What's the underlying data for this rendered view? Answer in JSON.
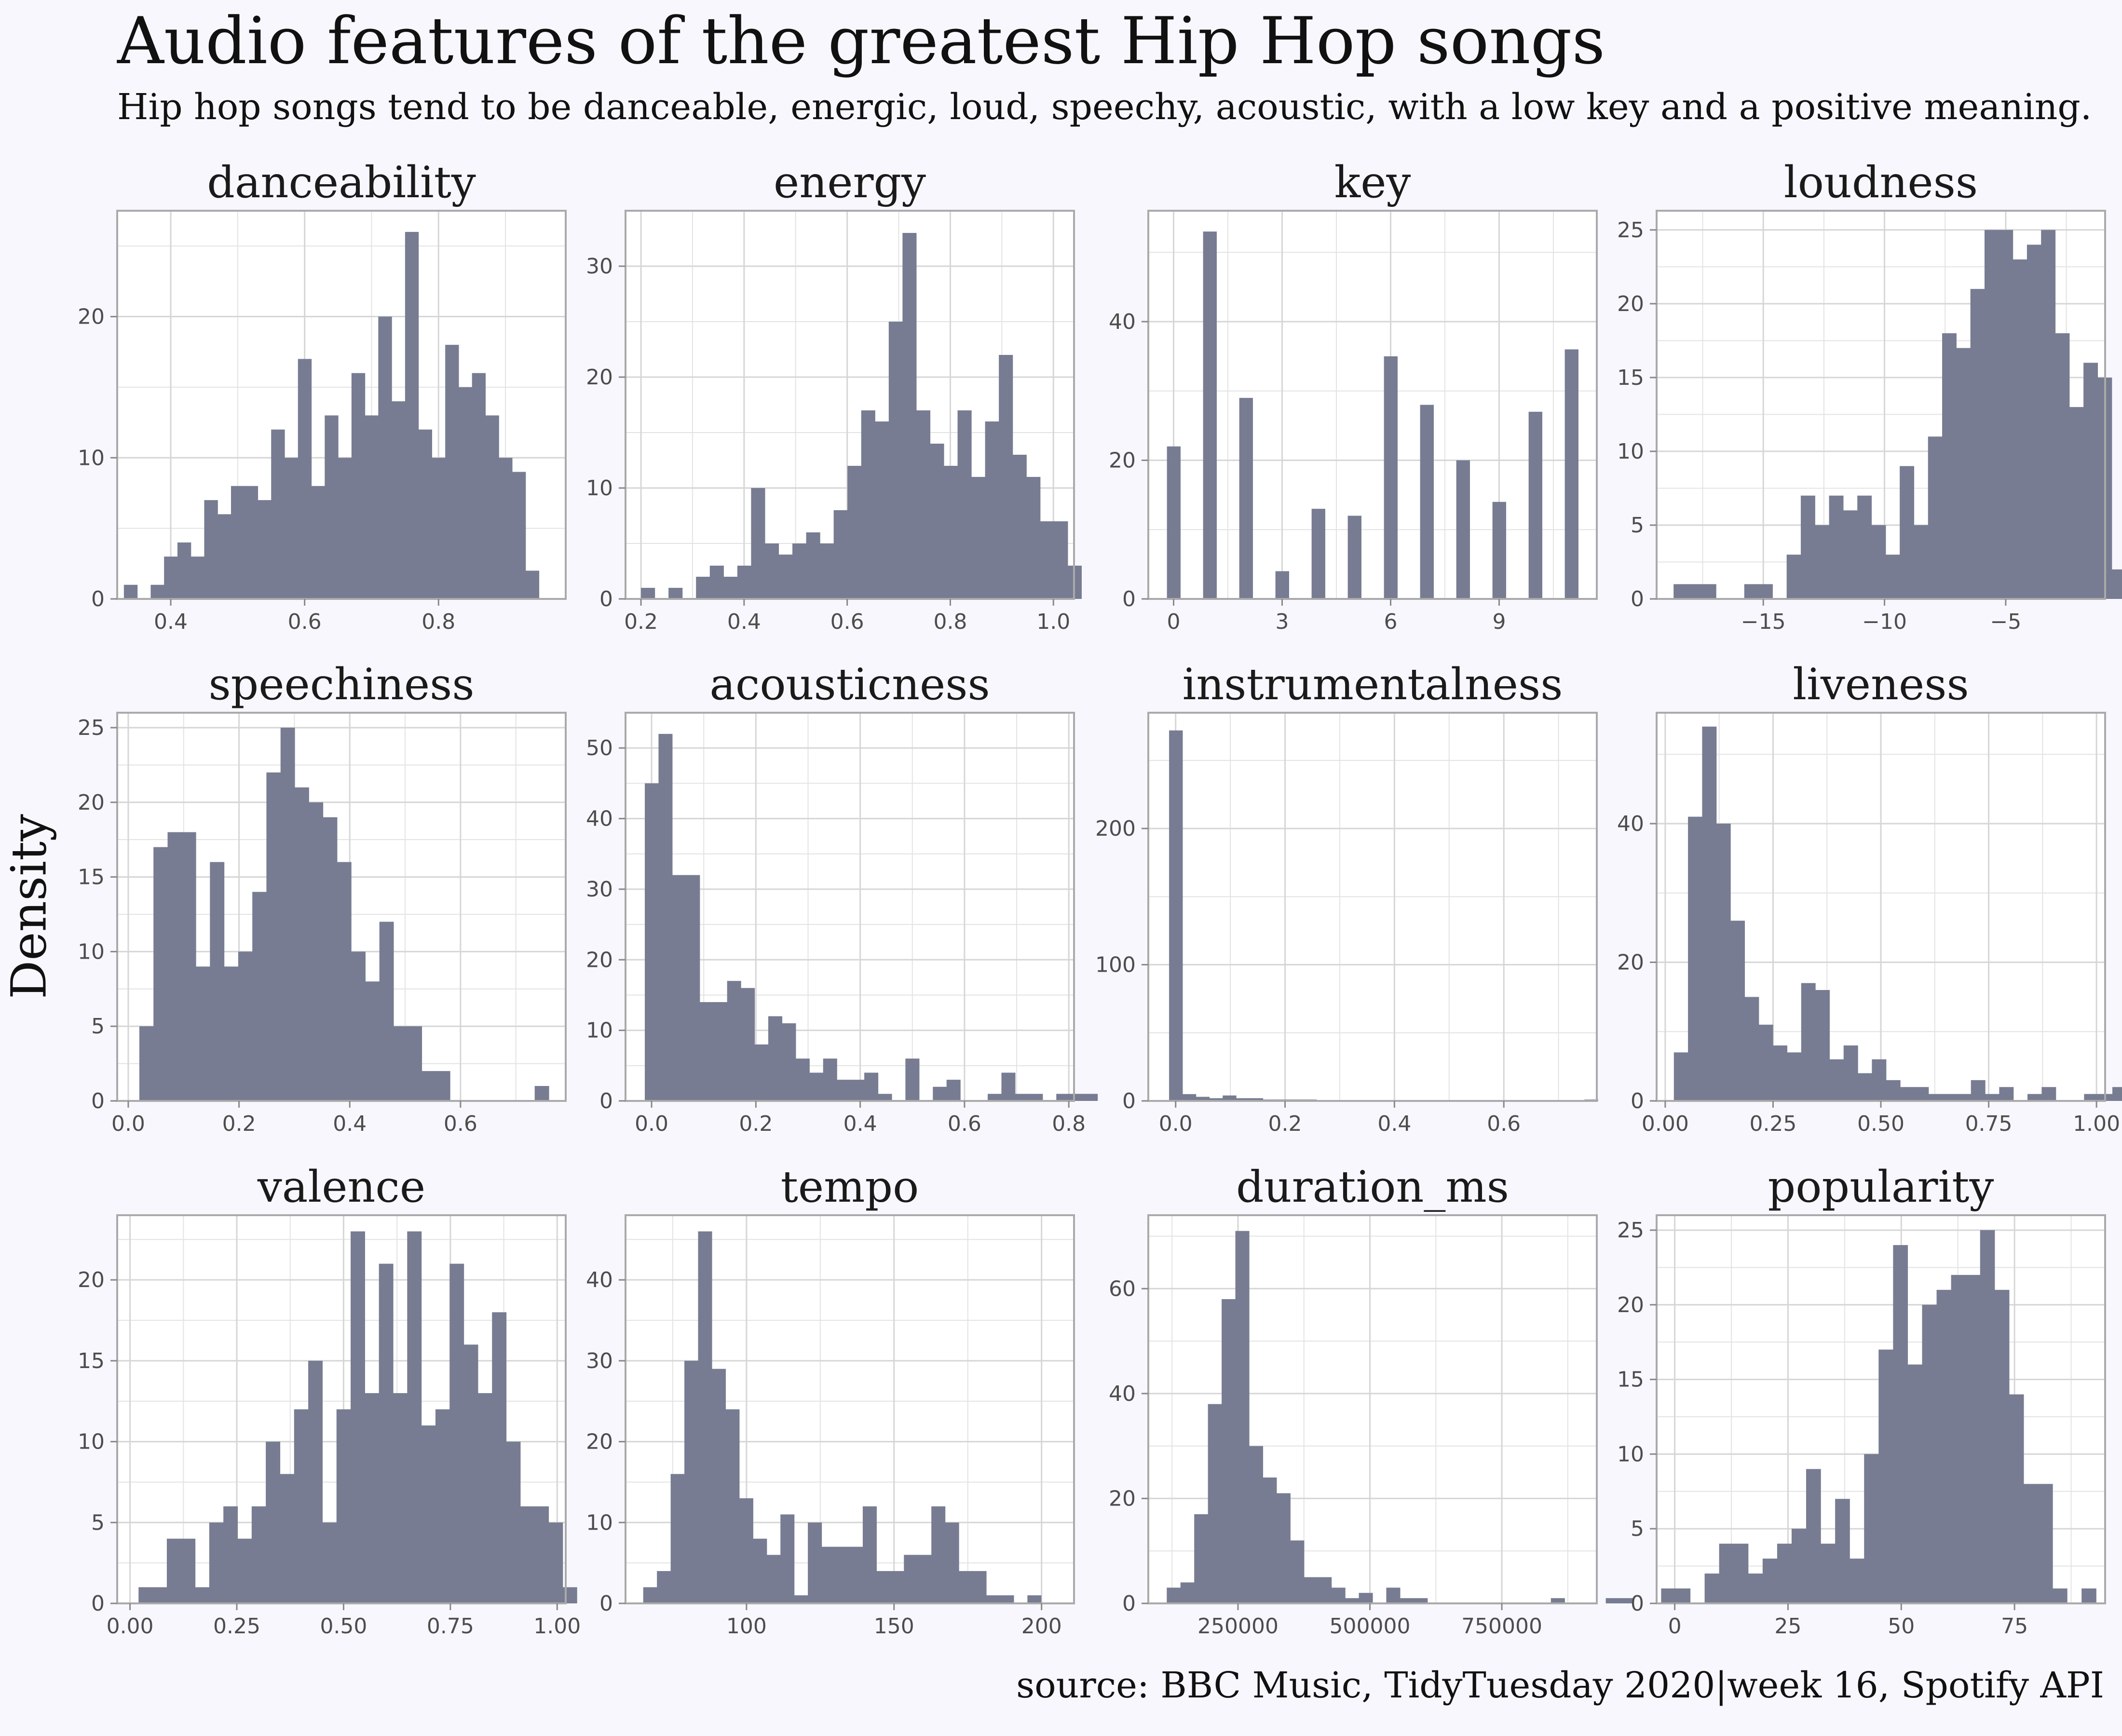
{
  "title": "Audio features of the greatest Hip Hop songs",
  "subtitle": "Hip hop songs tend to be danceable, energic, loud, speechy, acoustic, with a low key  and a positive meaning.",
  "ylabel": "Density",
  "caption": "source: BBC Music, TidyTuesday 2020|week 16, Spotify API",
  "colors": {
    "bar": "#777c92",
    "background": "#f8f7fe",
    "panel": "#ffffff",
    "border": "#aaaaaa",
    "grid": "#e3e3e3"
  },
  "chart_data": [
    {
      "type": "bar",
      "name": "danceability",
      "bin_start": 0.33,
      "bin_width": 0.02,
      "values": [
        1,
        0,
        1,
        3,
        4,
        3,
        7,
        6,
        8,
        8,
        7,
        12,
        10,
        17,
        8,
        13,
        10,
        16,
        13,
        20,
        14,
        26,
        12,
        10,
        18,
        15,
        16,
        13,
        10,
        9,
        2
      ],
      "xlim": [
        0.32,
        0.99
      ],
      "ylim": [
        0,
        27.5
      ],
      "xticks": [
        0.4,
        0.6,
        0.8
      ],
      "xtick_labels": [
        "0.4",
        "0.6",
        "0.8"
      ],
      "yticks": [
        0,
        10,
        20
      ],
      "ytick_labels": [
        "0",
        "10",
        "20"
      ]
    },
    {
      "type": "bar",
      "name": "energy",
      "bin_start": 0.2,
      "bin_width": 0.0267,
      "values": [
        1,
        0,
        1,
        0,
        2,
        3,
        2,
        3,
        10,
        5,
        4,
        5,
        6,
        5,
        8,
        12,
        17,
        16,
        25,
        33,
        17,
        14,
        12,
        17,
        11,
        16,
        22,
        13,
        11,
        7,
        7,
        3
      ],
      "xlim": [
        0.17,
        1.04
      ],
      "ylim": [
        0,
        35
      ],
      "xticks": [
        0.2,
        0.4,
        0.6,
        0.8,
        1.0
      ],
      "xtick_labels": [
        "0.2",
        "0.4",
        "0.6",
        "0.8",
        "1.0"
      ],
      "yticks": [
        0,
        10,
        20,
        30
      ],
      "ytick_labels": [
        "0",
        "10",
        "20",
        "30"
      ]
    },
    {
      "type": "bar",
      "name": "key",
      "bar_centers": [
        0,
        1,
        2,
        3,
        4,
        5,
        6,
        7,
        8,
        9,
        10,
        11
      ],
      "bar_width": 0.37,
      "values": [
        22,
        53,
        29,
        4,
        13,
        12,
        35,
        28,
        20,
        14,
        27,
        36
      ],
      "xlim": [
        -0.7,
        11.7
      ],
      "ylim": [
        0,
        56
      ],
      "xticks": [
        0,
        3,
        6,
        9
      ],
      "xtick_labels": [
        "0",
        "3",
        "6",
        "9"
      ],
      "yticks": [
        0,
        20,
        40
      ],
      "ytick_labels": [
        "0",
        "20",
        "40"
      ]
    },
    {
      "type": "bar",
      "name": "loudness",
      "bin_start": -18.7,
      "bin_width": 0.583,
      "values": [
        1,
        1,
        1,
        0,
        0,
        1,
        1,
        0,
        3,
        7,
        5,
        7,
        6,
        7,
        5,
        3,
        9,
        5,
        11,
        18,
        17,
        21,
        25,
        25,
        23,
        24,
        25,
        18,
        13,
        16,
        15,
        2
      ],
      "xlim": [
        -19.4,
        -0.9
      ],
      "ylim": [
        0,
        26.3
      ],
      "xticks": [
        -15,
        -10,
        -5
      ],
      "xtick_labels": [
        "−15",
        "−10",
        "−5"
      ],
      "yticks": [
        0,
        5,
        10,
        15,
        20,
        25
      ],
      "ytick_labels": [
        "0",
        "5",
        "10",
        "15",
        "20",
        "25"
      ]
    },
    {
      "type": "bar",
      "name": "speechiness",
      "bin_start": 0.02,
      "bin_width": 0.0255,
      "values": [
        5,
        17,
        18,
        18,
        9,
        16,
        9,
        10,
        14,
        22,
        25,
        21,
        20,
        19,
        16,
        10,
        8,
        12,
        5,
        5,
        2,
        2,
        0,
        0,
        0,
        0,
        0,
        0,
        1
      ],
      "xlim": [
        -0.02,
        0.79
      ],
      "ylim": [
        0,
        26
      ],
      "xticks": [
        0.0,
        0.2,
        0.4,
        0.6
      ],
      "xtick_labels": [
        "0.0",
        "0.2",
        "0.4",
        "0.6"
      ],
      "yticks": [
        0,
        5,
        10,
        15,
        20,
        25
      ],
      "ytick_labels": [
        "0",
        "5",
        "10",
        "15",
        "20",
        "25"
      ]
    },
    {
      "type": "bar",
      "name": "acousticness",
      "bin_start": -0.013,
      "bin_width": 0.0263,
      "values": [
        45,
        52,
        32,
        32,
        14,
        14,
        17,
        16,
        8,
        12,
        11,
        6,
        4,
        6,
        3,
        3,
        4,
        1,
        0,
        6,
        0,
        2,
        3,
        0,
        0,
        1,
        4,
        1,
        1,
        0,
        1,
        1,
        1
      ],
      "xlim": [
        -0.05,
        0.81
      ],
      "ylim": [
        0,
        55
      ],
      "xticks": [
        0.0,
        0.2,
        0.4,
        0.6,
        0.8
      ],
      "xtick_labels": [
        "0.0",
        "0.2",
        "0.4",
        "0.6",
        "0.8"
      ],
      "yticks": [
        0,
        10,
        20,
        30,
        40,
        50
      ],
      "ytick_labels": [
        "0",
        "10",
        "20",
        "30",
        "40",
        "50"
      ]
    },
    {
      "type": "bar",
      "name": "instrumentalness",
      "bin_start": -0.012,
      "bin_width": 0.0245,
      "values": [
        272,
        5,
        3,
        2,
        4,
        2,
        2,
        1,
        1,
        1,
        1,
        0,
        0,
        0,
        0,
        0,
        0,
        0,
        0,
        0,
        0,
        0,
        0,
        0,
        0,
        0,
        0,
        0,
        0,
        0,
        0,
        1
      ],
      "xlim": [
        -0.05,
        0.77
      ],
      "ylim": [
        0,
        285
      ],
      "xticks": [
        0.0,
        0.2,
        0.4,
        0.6
      ],
      "xtick_labels": [
        "0.0",
        "0.2",
        "0.4",
        "0.6"
      ],
      "yticks": [
        0,
        100,
        200
      ],
      "ytick_labels": [
        "0",
        "100",
        "200"
      ]
    },
    {
      "type": "bar",
      "name": "liveness",
      "bin_start": 0.02,
      "bin_width": 0.0328,
      "values": [
        7,
        41,
        54,
        40,
        26,
        15,
        11,
        8,
        7,
        17,
        16,
        6,
        8,
        4,
        6,
        3,
        2,
        2,
        1,
        1,
        1,
        3,
        1,
        2,
        0,
        1,
        2,
        0,
        0,
        1,
        1,
        2,
        1
      ],
      "xlim": [
        -0.02,
        1.02
      ],
      "ylim": [
        0,
        56
      ],
      "xticks": [
        0.0,
        0.25,
        0.5,
        0.75,
        1.0
      ],
      "xtick_labels": [
        "0.00",
        "0.25",
        "0.50",
        "0.75",
        "1.00"
      ],
      "yticks": [
        0,
        20,
        40
      ],
      "ytick_labels": [
        "0",
        "20",
        "40"
      ]
    },
    {
      "type": "bar",
      "name": "valence",
      "bin_start": 0.02,
      "bin_width": 0.0331,
      "values": [
        1,
        1,
        4,
        4,
        1,
        5,
        6,
        4,
        6,
        10,
        8,
        12,
        15,
        5,
        12,
        23,
        13,
        21,
        13,
        23,
        11,
        12,
        21,
        16,
        13,
        18,
        10,
        6,
        6,
        5,
        1
      ],
      "xlim": [
        -0.03,
        1.02
      ],
      "ylim": [
        0,
        24
      ],
      "xticks": [
        0.0,
        0.25,
        0.5,
        0.75,
        1.0
      ],
      "xtick_labels": [
        "0.00",
        "0.25",
        "0.50",
        "0.75",
        "1.00"
      ],
      "yticks": [
        0,
        5,
        10,
        15,
        20
      ],
      "ytick_labels": [
        "0",
        "5",
        "10",
        "15",
        "20"
      ]
    },
    {
      "type": "bar",
      "name": "tempo",
      "bin_start": 65,
      "bin_width": 4.65,
      "values": [
        2,
        4,
        16,
        30,
        46,
        29,
        24,
        13,
        8,
        6,
        11,
        1,
        10,
        7,
        7,
        7,
        12,
        4,
        4,
        6,
        6,
        12,
        10,
        4,
        4,
        1,
        1,
        0,
        1
      ],
      "xlim": [
        59,
        211
      ],
      "ylim": [
        0,
        48
      ],
      "xticks": [
        100,
        150,
        200
      ],
      "xtick_labels": [
        "100",
        "150",
        "200"
      ],
      "yticks": [
        0,
        10,
        20,
        30,
        40
      ],
      "ytick_labels": [
        "0",
        "10",
        "20",
        "30",
        "40"
      ]
    },
    {
      "type": "bar",
      "name": "duration_ms",
      "bin_start": 115000,
      "bin_width": 26000,
      "values": [
        3,
        4,
        17,
        38,
        58,
        71,
        30,
        24,
        21,
        12,
        5,
        5,
        3,
        1,
        2,
        0,
        3,
        1,
        1,
        0,
        0,
        0,
        0,
        0,
        0,
        0,
        0,
        0,
        1,
        0,
        0,
        0,
        1,
        1
      ],
      "xlim": [
        80000,
        930000
      ],
      "ylim": [
        0,
        74
      ],
      "xticks": [
        250000,
        500000,
        750000
      ],
      "xtick_labels": [
        "250000",
        "500000",
        "750000"
      ],
      "yticks": [
        0,
        20,
        40,
        60
      ],
      "ytick_labels": [
        "0",
        "20",
        "40",
        "60"
      ]
    },
    {
      "type": "bar",
      "name": "popularity",
      "bin_start": -3,
      "bin_width": 3.2,
      "values": [
        1,
        1,
        0,
        2,
        4,
        4,
        2,
        3,
        4,
        5,
        9,
        4,
        7,
        3,
        10,
        17,
        24,
        16,
        20,
        21,
        22,
        22,
        25,
        21,
        14,
        8,
        8,
        1,
        0,
        1
      ],
      "xlim": [
        -4,
        95
      ],
      "ylim": [
        0,
        26
      ],
      "xticks": [
        0,
        25,
        50,
        75
      ],
      "xtick_labels": [
        "0",
        "25",
        "50",
        "75"
      ],
      "yticks": [
        0,
        5,
        10,
        15,
        20,
        25
      ],
      "ytick_labels": [
        "0",
        "5",
        "10",
        "15",
        "20",
        "25"
      ]
    }
  ]
}
